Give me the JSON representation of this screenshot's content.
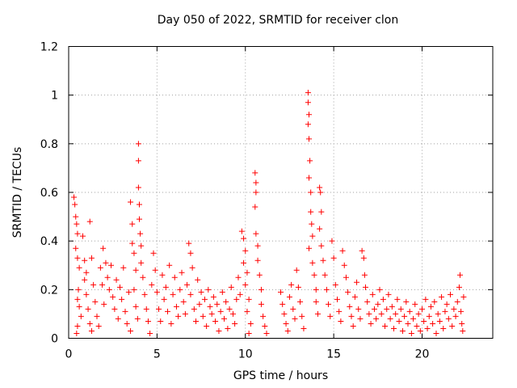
{
  "chart_data": {
    "type": "scatter",
    "title": "Day 050 of 2022, SRMTID for receiver clon",
    "xlabel": "GPS time / hours",
    "ylabel": "SRMTID / TECUs",
    "xlim": [
      0,
      24
    ],
    "ylim": [
      0,
      1.2
    ],
    "xticks": [
      0,
      5,
      10,
      15,
      20
    ],
    "yticks": [
      0,
      0.2,
      0.4,
      0.6,
      0.8,
      1,
      1.2
    ],
    "ytick_labels": [
      "0",
      "0.2",
      "0.4",
      "0.6",
      "0.8",
      "1",
      "1.2"
    ],
    "grid": true,
    "marker": "+",
    "series": [
      {
        "name": "SRMTID",
        "color": "#ff0000",
        "points": [
          [
            0.3,
            0.58
          ],
          [
            0.35,
            0.55
          ],
          [
            0.4,
            0.5
          ],
          [
            0.45,
            0.47
          ],
          [
            0.5,
            0.43
          ],
          [
            0.4,
            0.37
          ],
          [
            0.5,
            0.33
          ],
          [
            0.6,
            0.29
          ],
          [
            0.55,
            0.2
          ],
          [
            0.5,
            0.16
          ],
          [
            0.6,
            0.13
          ],
          [
            0.7,
            0.09
          ],
          [
            0.5,
            0.05
          ],
          [
            0.45,
            0.02
          ],
          [
            0.8,
            0.42
          ],
          [
            0.9,
            0.32
          ],
          [
            0.9,
            0.24
          ],
          [
            1.0,
            0.18
          ],
          [
            1.1,
            0.12
          ],
          [
            1.2,
            0.06
          ],
          [
            1.3,
            0.03
          ],
          [
            1.0,
            0.27
          ],
          [
            1.2,
            0.48
          ],
          [
            1.3,
            0.33
          ],
          [
            1.4,
            0.22
          ],
          [
            1.5,
            0.15
          ],
          [
            1.6,
            0.09
          ],
          [
            1.7,
            0.05
          ],
          [
            1.8,
            0.29
          ],
          [
            1.9,
            0.22
          ],
          [
            1.95,
            0.37
          ],
          [
            2.0,
            0.14
          ],
          [
            2.1,
            0.31
          ],
          [
            2.2,
            0.25
          ],
          [
            2.3,
            0.2
          ],
          [
            2.4,
            0.3
          ],
          [
            2.5,
            0.17
          ],
          [
            2.6,
            0.12
          ],
          [
            2.7,
            0.24
          ],
          [
            2.8,
            0.08
          ],
          [
            2.9,
            0.21
          ],
          [
            3.0,
            0.16
          ],
          [
            3.1,
            0.29
          ],
          [
            3.2,
            0.11
          ],
          [
            3.3,
            0.06
          ],
          [
            3.4,
            0.19
          ],
          [
            3.5,
            0.56
          ],
          [
            3.6,
            0.47
          ],
          [
            3.6,
            0.39
          ],
          [
            3.7,
            0.35
          ],
          [
            3.8,
            0.28
          ],
          [
            3.7,
            0.2
          ],
          [
            3.8,
            0.13
          ],
          [
            3.9,
            0.08
          ],
          [
            3.5,
            0.03
          ],
          [
            3.95,
            0.8
          ],
          [
            3.95,
            0.73
          ],
          [
            3.95,
            0.62
          ],
          [
            4.0,
            0.55
          ],
          [
            4.0,
            0.49
          ],
          [
            4.05,
            0.43
          ],
          [
            4.1,
            0.38
          ],
          [
            4.1,
            0.31
          ],
          [
            4.2,
            0.25
          ],
          [
            4.3,
            0.18
          ],
          [
            4.4,
            0.12
          ],
          [
            4.5,
            0.07
          ],
          [
            4.6,
            0.02
          ],
          [
            4.7,
            0.22
          ],
          [
            4.8,
            0.35
          ],
          [
            4.9,
            0.28
          ],
          [
            5.0,
            0.19
          ],
          [
            5.1,
            0.12
          ],
          [
            5.2,
            0.07
          ],
          [
            5.3,
            0.26
          ],
          [
            5.4,
            0.16
          ],
          [
            5.5,
            0.21
          ],
          [
            5.6,
            0.11
          ],
          [
            5.7,
            0.3
          ],
          [
            5.8,
            0.06
          ],
          [
            5.9,
            0.18
          ],
          [
            6.0,
            0.25
          ],
          [
            6.1,
            0.13
          ],
          [
            6.2,
            0.09
          ],
          [
            6.3,
            0.2
          ],
          [
            6.4,
            0.27
          ],
          [
            6.5,
            0.15
          ],
          [
            6.6,
            0.1
          ],
          [
            6.7,
            0.22
          ],
          [
            6.8,
            0.39
          ],
          [
            6.9,
            0.35
          ],
          [
            7.0,
            0.29
          ],
          [
            6.9,
            0.18
          ],
          [
            7.1,
            0.12
          ],
          [
            7.2,
            0.07
          ],
          [
            7.3,
            0.24
          ],
          [
            7.4,
            0.14
          ],
          [
            7.5,
            0.19
          ],
          [
            7.6,
            0.09
          ],
          [
            7.7,
            0.16
          ],
          [
            7.8,
            0.05
          ],
          [
            7.9,
            0.2
          ],
          [
            8.0,
            0.13
          ],
          [
            8.1,
            0.1
          ],
          [
            8.2,
            0.17
          ],
          [
            8.3,
            0.07
          ],
          [
            8.4,
            0.14
          ],
          [
            8.5,
            0.03
          ],
          [
            8.6,
            0.11
          ],
          [
            8.7,
            0.19
          ],
          [
            8.8,
            0.08
          ],
          [
            8.9,
            0.15
          ],
          [
            9.0,
            0.04
          ],
          [
            9.1,
            0.12
          ],
          [
            9.2,
            0.21
          ],
          [
            9.3,
            0.1
          ],
          [
            9.4,
            0.06
          ],
          [
            9.5,
            0.16
          ],
          [
            9.6,
            0.25
          ],
          [
            9.7,
            0.18
          ],
          [
            9.8,
            0.44
          ],
          [
            9.9,
            0.41
          ],
          [
            10.0,
            0.36
          ],
          [
            9.9,
            0.31
          ],
          [
            10.1,
            0.27
          ],
          [
            10.0,
            0.22
          ],
          [
            10.2,
            0.16
          ],
          [
            10.1,
            0.11
          ],
          [
            10.3,
            0.06
          ],
          [
            10.2,
            0.02
          ],
          [
            10.55,
            0.68
          ],
          [
            10.6,
            0.64
          ],
          [
            10.6,
            0.6
          ],
          [
            10.55,
            0.54
          ],
          [
            10.6,
            0.43
          ],
          [
            10.7,
            0.38
          ],
          [
            10.7,
            0.32
          ],
          [
            10.8,
            0.26
          ],
          [
            10.9,
            0.2
          ],
          [
            10.9,
            0.14
          ],
          [
            11.0,
            0.09
          ],
          [
            11.1,
            0.05
          ],
          [
            11.2,
            0.02
          ],
          [
            12.0,
            0.19
          ],
          [
            12.1,
            0.14
          ],
          [
            12.2,
            0.1
          ],
          [
            12.3,
            0.06
          ],
          [
            12.4,
            0.03
          ],
          [
            12.5,
            0.17
          ],
          [
            12.6,
            0.22
          ],
          [
            12.7,
            0.12
          ],
          [
            12.8,
            0.08
          ],
          [
            12.9,
            0.28
          ],
          [
            13.0,
            0.21
          ],
          [
            13.1,
            0.15
          ],
          [
            13.2,
            0.09
          ],
          [
            13.3,
            0.04
          ],
          [
            13.55,
            1.01
          ],
          [
            13.55,
            0.97
          ],
          [
            13.6,
            0.92
          ],
          [
            13.55,
            0.88
          ],
          [
            13.6,
            0.82
          ],
          [
            13.65,
            0.73
          ],
          [
            13.6,
            0.66
          ],
          [
            13.7,
            0.6
          ],
          [
            13.7,
            0.52
          ],
          [
            13.75,
            0.47
          ],
          [
            13.8,
            0.42
          ],
          [
            13.6,
            0.37
          ],
          [
            13.8,
            0.31
          ],
          [
            13.9,
            0.26
          ],
          [
            14.0,
            0.2
          ],
          [
            14.0,
            0.15
          ],
          [
            14.1,
            0.1
          ],
          [
            14.2,
            0.62
          ],
          [
            14.25,
            0.6
          ],
          [
            14.3,
            0.52
          ],
          [
            14.2,
            0.45
          ],
          [
            14.3,
            0.38
          ],
          [
            14.4,
            0.32
          ],
          [
            14.5,
            0.26
          ],
          [
            14.6,
            0.2
          ],
          [
            14.7,
            0.14
          ],
          [
            14.8,
            0.09
          ],
          [
            14.9,
            0.4
          ],
          [
            15.0,
            0.33
          ],
          [
            15.1,
            0.22
          ],
          [
            15.2,
            0.16
          ],
          [
            15.3,
            0.11
          ],
          [
            15.4,
            0.07
          ],
          [
            15.5,
            0.36
          ],
          [
            15.6,
            0.3
          ],
          [
            15.7,
            0.25
          ],
          [
            15.8,
            0.19
          ],
          [
            15.9,
            0.13
          ],
          [
            16.0,
            0.09
          ],
          [
            16.1,
            0.05
          ],
          [
            16.2,
            0.17
          ],
          [
            16.3,
            0.23
          ],
          [
            16.4,
            0.12
          ],
          [
            16.5,
            0.08
          ],
          [
            16.6,
            0.36
          ],
          [
            16.7,
            0.33
          ],
          [
            16.75,
            0.26
          ],
          [
            16.8,
            0.21
          ],
          [
            16.9,
            0.15
          ],
          [
            17.0,
            0.1
          ],
          [
            17.1,
            0.06
          ],
          [
            17.2,
            0.18
          ],
          [
            17.3,
            0.12
          ],
          [
            17.4,
            0.08
          ],
          [
            17.5,
            0.14
          ],
          [
            17.6,
            0.2
          ],
          [
            17.7,
            0.1
          ],
          [
            17.8,
            0.16
          ],
          [
            17.9,
            0.05
          ],
          [
            18.0,
            0.12
          ],
          [
            18.1,
            0.18
          ],
          [
            18.2,
            0.08
          ],
          [
            18.3,
            0.13
          ],
          [
            18.4,
            0.04
          ],
          [
            18.5,
            0.1
          ],
          [
            18.6,
            0.16
          ],
          [
            18.7,
            0.07
          ],
          [
            18.8,
            0.12
          ],
          [
            18.9,
            0.03
          ],
          [
            19.0,
            0.09
          ],
          [
            19.1,
            0.15
          ],
          [
            19.2,
            0.06
          ],
          [
            19.3,
            0.11
          ],
          [
            19.4,
            0.02
          ],
          [
            19.5,
            0.08
          ],
          [
            19.6,
            0.14
          ],
          [
            19.7,
            0.05
          ],
          [
            19.8,
            0.1
          ],
          [
            19.9,
            0.03
          ],
          [
            20.0,
            0.12
          ],
          [
            20.1,
            0.07
          ],
          [
            20.2,
            0.16
          ],
          [
            20.3,
            0.04
          ],
          [
            20.4,
            0.09
          ],
          [
            20.5,
            0.13
          ],
          [
            20.6,
            0.06
          ],
          [
            20.7,
            0.15
          ],
          [
            20.8,
            0.02
          ],
          [
            20.9,
            0.1
          ],
          [
            21.0,
            0.07
          ],
          [
            21.1,
            0.17
          ],
          [
            21.2,
            0.04
          ],
          [
            21.3,
            0.11
          ],
          [
            21.4,
            0.14
          ],
          [
            21.5,
            0.08
          ],
          [
            21.6,
            0.18
          ],
          [
            21.7,
            0.05
          ],
          [
            21.8,
            0.12
          ],
          [
            21.9,
            0.09
          ],
          [
            22.0,
            0.15
          ],
          [
            22.1,
            0.21
          ],
          [
            22.15,
            0.26
          ],
          [
            22.2,
            0.11
          ],
          [
            22.25,
            0.06
          ],
          [
            22.3,
            0.03
          ],
          [
            22.35,
            0.17
          ]
        ]
      }
    ]
  }
}
